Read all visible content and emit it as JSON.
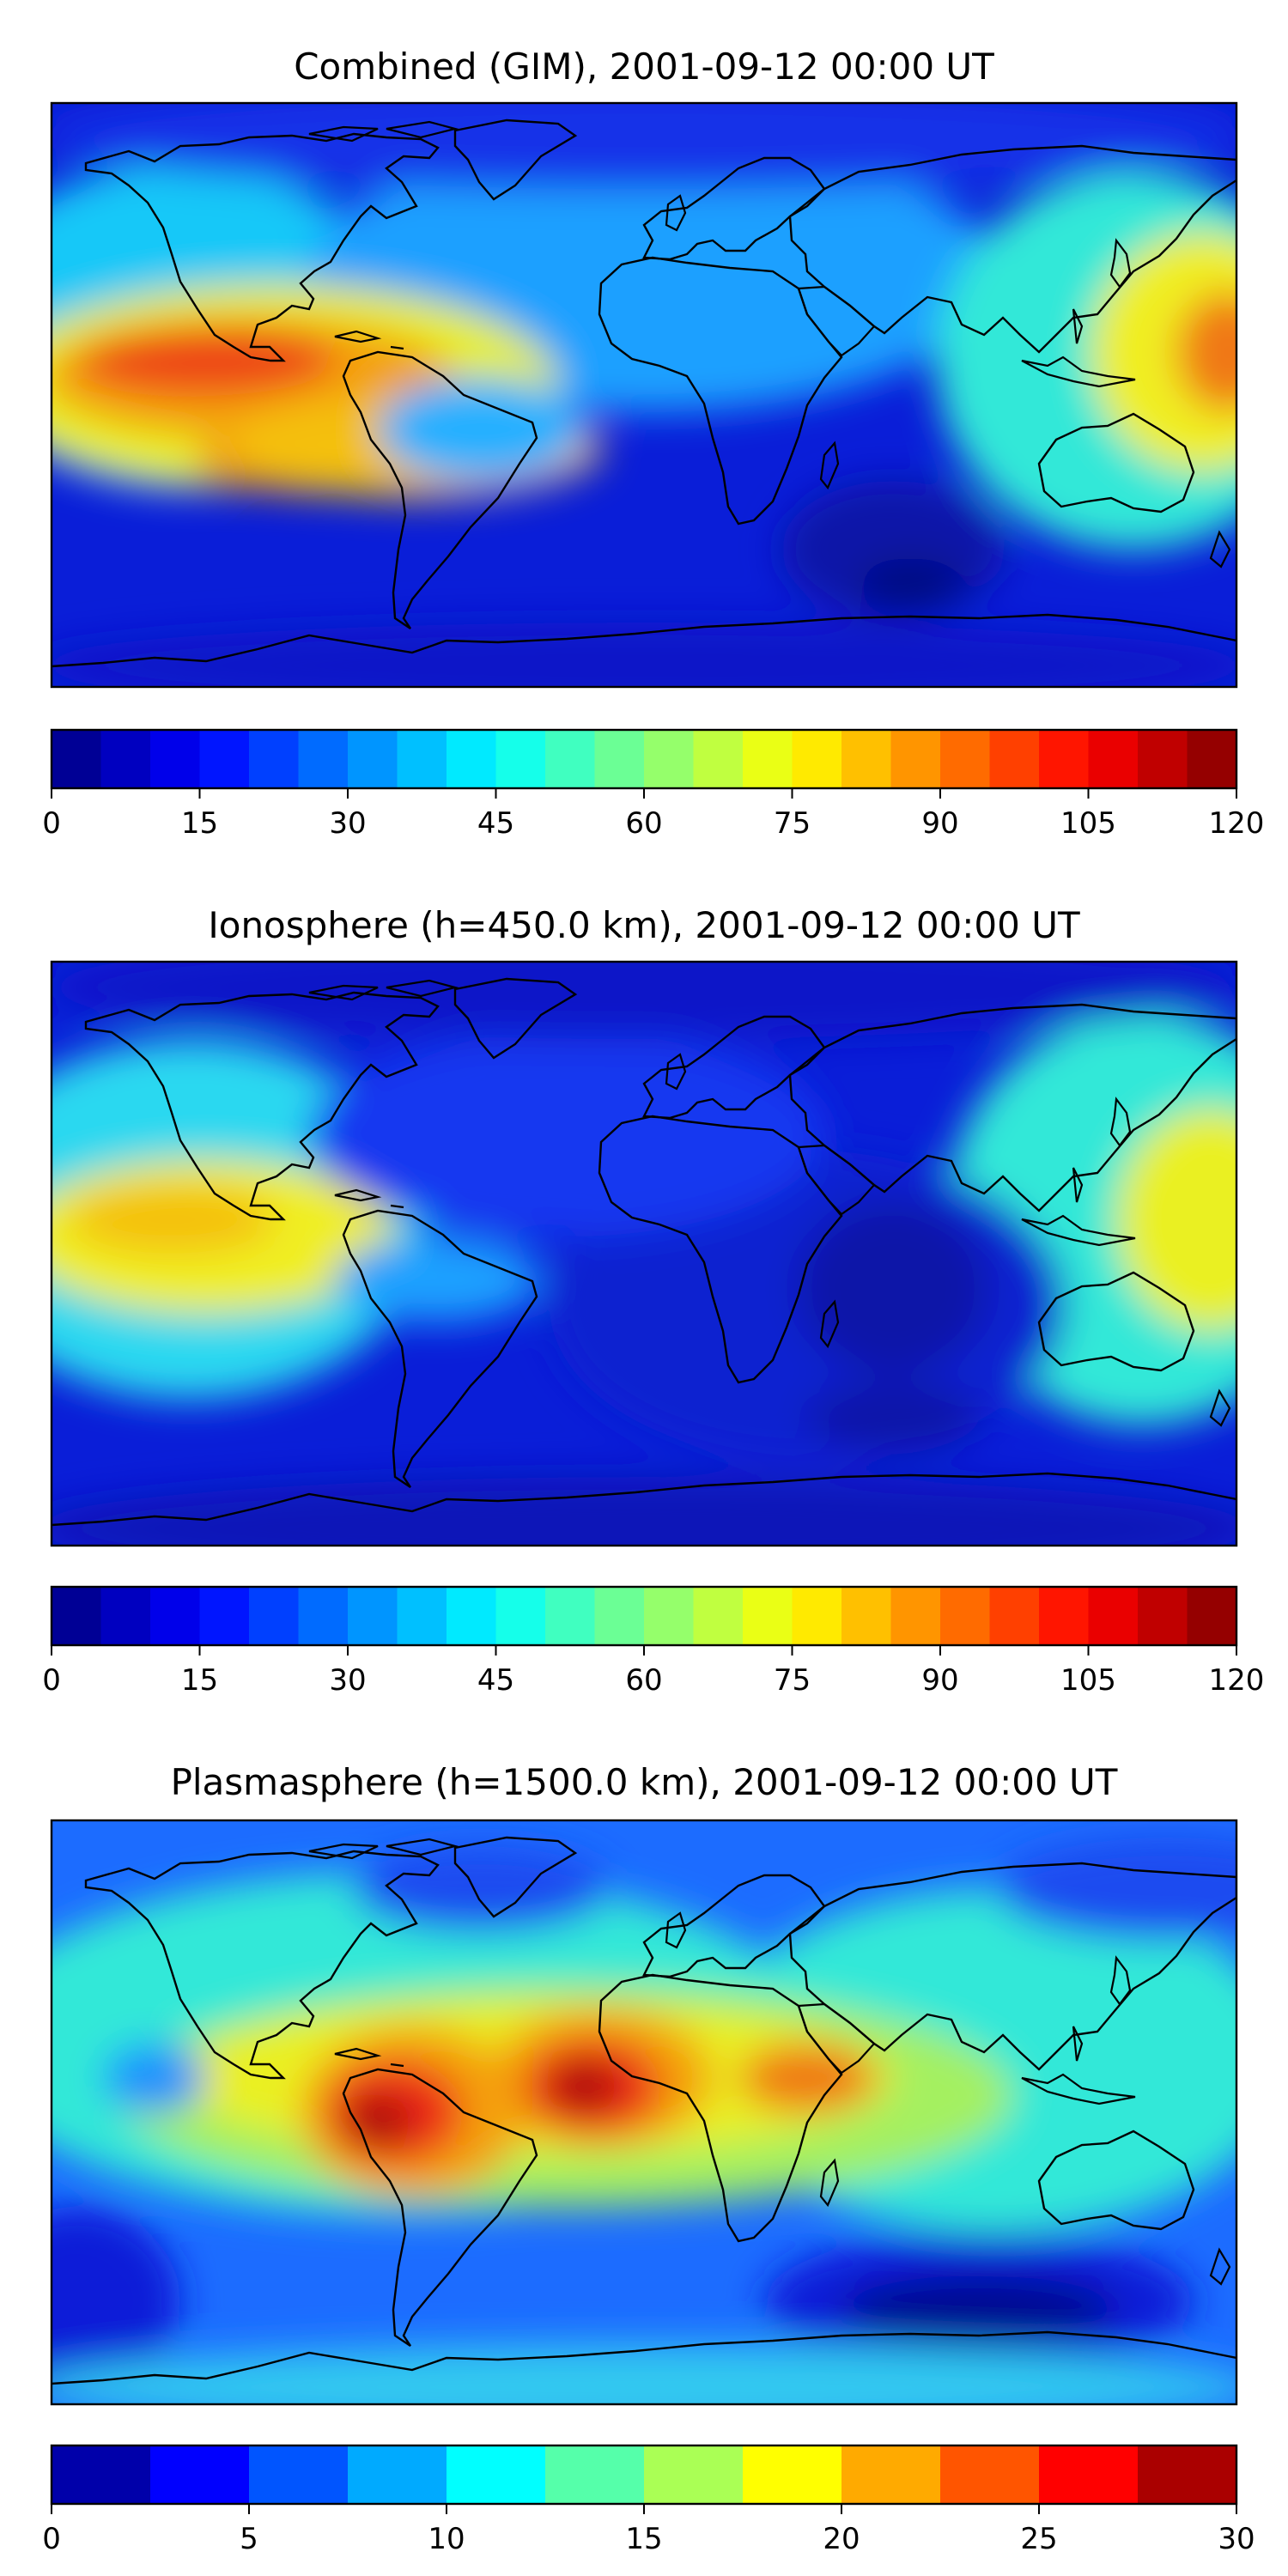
{
  "figure": {
    "panels": [
      {
        "id": "combined",
        "title": "Combined (GIM), 2001-09-12 00:00 UT",
        "colorbar": {
          "min": 0,
          "max": 120,
          "levels": 24,
          "ticks": [
            "0",
            "15",
            "30",
            "45",
            "60",
            "75",
            "90",
            "105",
            "120"
          ]
        }
      },
      {
        "id": "ionosphere",
        "title": "Ionosphere  (h=450.0 km), 2001-09-12 00:00 UT",
        "colorbar": {
          "min": 0,
          "max": 120,
          "levels": 24,
          "ticks": [
            "0",
            "15",
            "30",
            "45",
            "60",
            "75",
            "90",
            "105",
            "120"
          ]
        }
      },
      {
        "id": "plasmasphere",
        "title": "Plasmasphere (h=1500.0 km), 2001-09-12 00:00 UT",
        "colorbar": {
          "min": 0,
          "max": 30,
          "levels": 12,
          "ticks": [
            "0",
            "5",
            "10",
            "15",
            "20",
            "25",
            "30"
          ]
        }
      }
    ]
  },
  "map": {
    "projection": "plate-carree",
    "coastlines": true,
    "colormap": "jet",
    "background_color": "#0a1ed8"
  },
  "colormap_stops": [
    "#000080",
    "#0000ff",
    "#0080ff",
    "#00ffff",
    "#80ff80",
    "#ffff00",
    "#ff8000",
    "#ff0000",
    "#800000"
  ]
}
